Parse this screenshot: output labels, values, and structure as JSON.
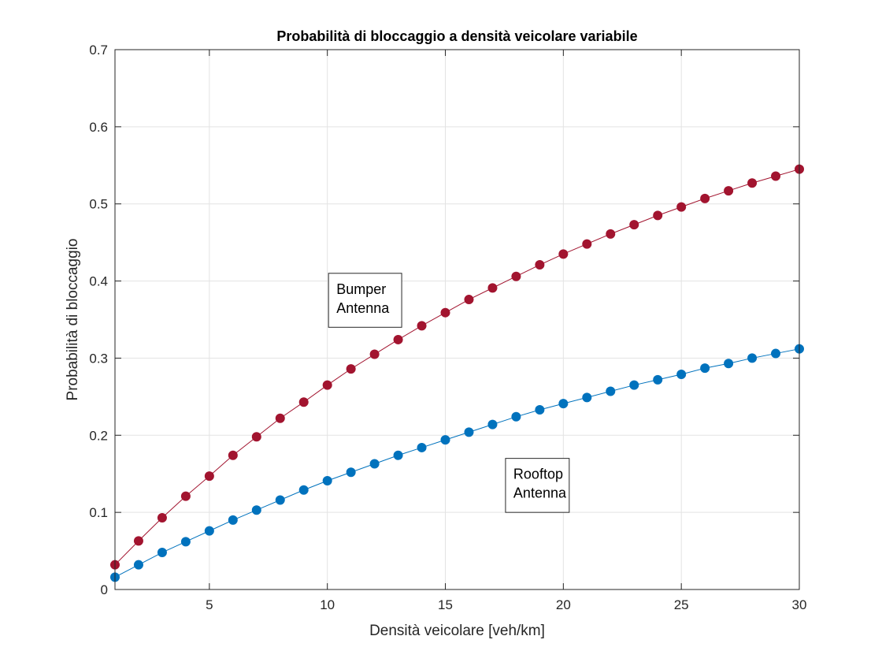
{
  "chart_data": {
    "type": "line",
    "title": "Probabilità di bloccaggio a densità veicolare variabile",
    "xlabel": "Densità veicolare [veh/km]",
    "ylabel": "Probabilità di bloccaggio",
    "xlim": [
      1,
      30
    ],
    "ylim": [
      0,
      0.7
    ],
    "xticks": [
      5,
      10,
      15,
      20,
      25,
      30
    ],
    "yticks": [
      0,
      0.1,
      0.2,
      0.3,
      0.4,
      0.5,
      0.6,
      0.7
    ],
    "grid": true,
    "x": [
      1,
      2,
      3,
      4,
      5,
      6,
      7,
      8,
      9,
      10,
      11,
      12,
      13,
      14,
      15,
      16,
      17,
      18,
      19,
      20,
      21,
      22,
      23,
      24,
      25,
      26,
      27,
      28,
      29,
      30
    ],
    "series": [
      {
        "color": "#a2142f",
        "values": [
          0.032,
          0.063,
          0.093,
          0.121,
          0.147,
          0.174,
          0.198,
          0.222,
          0.243,
          0.265,
          0.286,
          0.305,
          0.324,
          0.342,
          0.359,
          0.376,
          0.391,
          0.406,
          0.421,
          0.435,
          0.448,
          0.461,
          0.473,
          0.485,
          0.496,
          0.507,
          0.517,
          0.527,
          0.536,
          0.545
        ]
      },
      {
        "color": "#0072bd",
        "values": [
          0.016,
          0.032,
          0.048,
          0.062,
          0.076,
          0.09,
          0.103,
          0.116,
          0.129,
          0.141,
          0.152,
          0.163,
          0.174,
          0.184,
          0.194,
          0.204,
          0.214,
          0.224,
          0.233,
          0.241,
          0.249,
          0.257,
          0.265,
          0.272,
          0.279,
          0.287,
          0.293,
          0.3,
          0.306,
          0.312
        ]
      }
    ],
    "annotations": [
      {
        "lines": [
          "Bumper",
          "Antenna"
        ],
        "x": 10.05,
        "y": 0.41,
        "width": 3.1,
        "height": 0.07
      },
      {
        "lines": [
          "Rooftop",
          "Antenna"
        ],
        "x": 17.55,
        "y": 0.17,
        "width": 2.7,
        "height": 0.07
      }
    ]
  }
}
